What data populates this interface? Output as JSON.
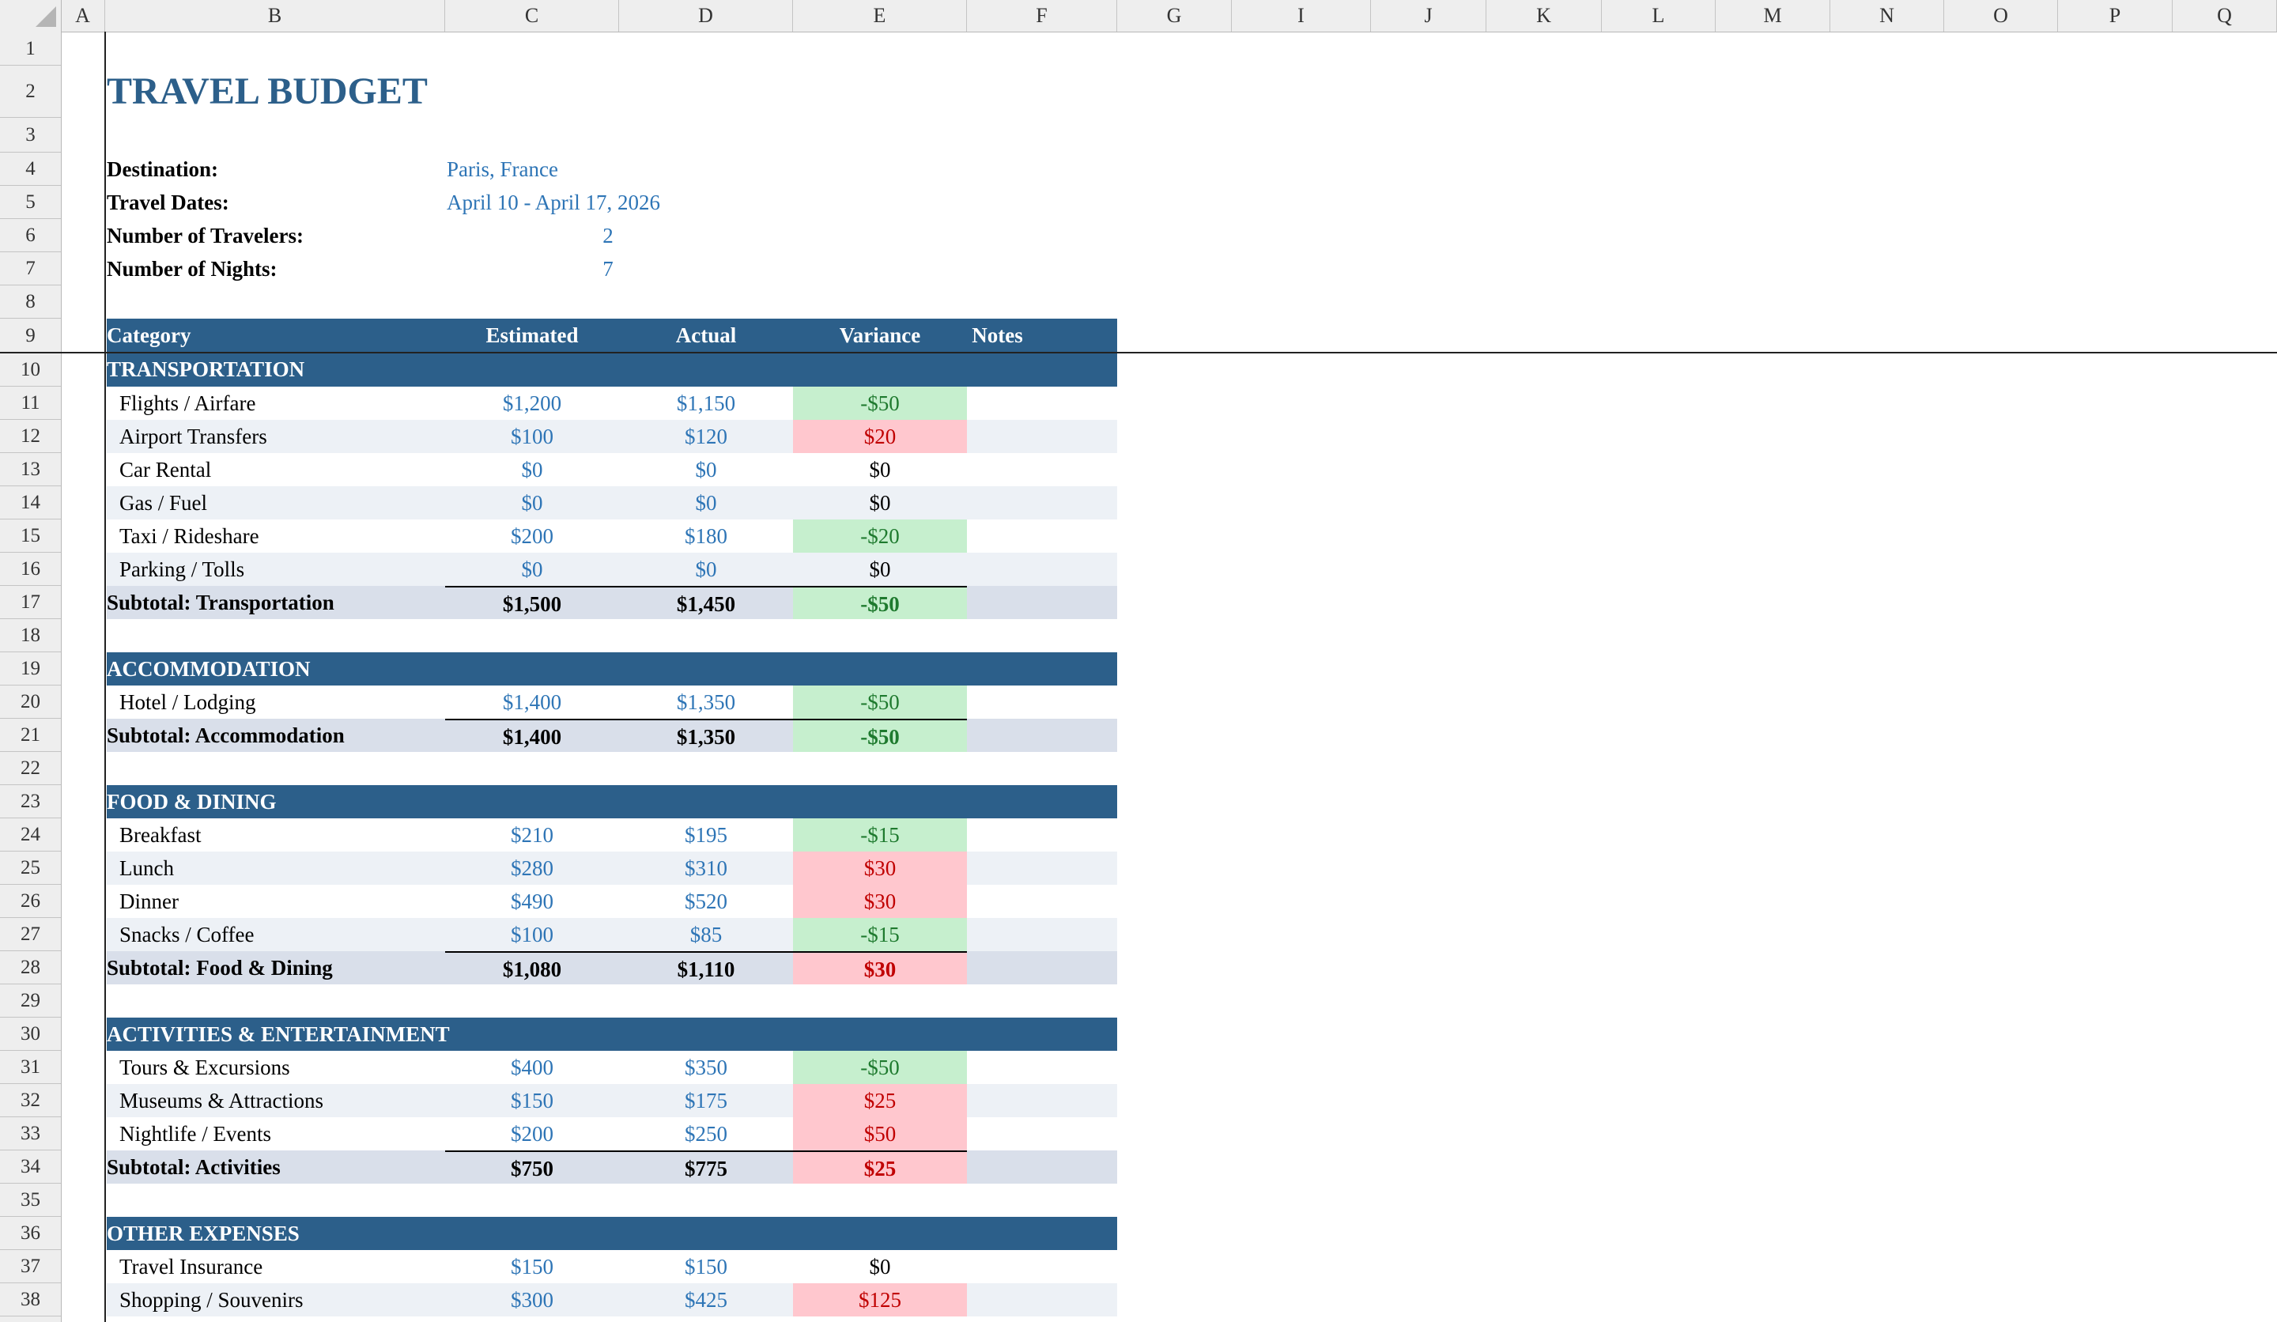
{
  "columns": [
    "A",
    "B",
    "C",
    "D",
    "E",
    "F",
    "G",
    "I",
    "J",
    "K",
    "L",
    "M",
    "N",
    "O",
    "P",
    "Q"
  ],
  "rows": [
    "1",
    "2",
    "3",
    "4",
    "5",
    "6",
    "7",
    "8",
    "9",
    "10",
    "11",
    "12",
    "13",
    "14",
    "15",
    "16",
    "17",
    "18",
    "19",
    "20",
    "21",
    "22",
    "23",
    "24",
    "25",
    "26",
    "27",
    "28",
    "29",
    "30",
    "31",
    "32",
    "33",
    "34",
    "35",
    "36",
    "37",
    "38"
  ],
  "title": "TRAVEL BUDGET",
  "info": {
    "destination_label": "Destination:",
    "destination": "Paris, France",
    "dates_label": "Travel Dates:",
    "dates": "April 10 - April 17, 2026",
    "travelers_label": "Number of Travelers:",
    "travelers": "2",
    "nights_label": "Number of Nights:",
    "nights": "7"
  },
  "table_header": {
    "category": "Category",
    "estimated": "Estimated",
    "actual": "Actual",
    "variance": "Variance",
    "notes": "Notes"
  },
  "sections": [
    {
      "name": "TRANSPORTATION",
      "items": [
        {
          "label": "Flights / Airfare",
          "est": "$1,200",
          "act": "$1,150",
          "var": "-$50",
          "status": "neg"
        },
        {
          "label": "Airport Transfers",
          "est": "$100",
          "act": "$120",
          "var": "$20",
          "status": "pos"
        },
        {
          "label": "Car Rental",
          "est": "$0",
          "act": "$0",
          "var": "$0",
          "status": "zero"
        },
        {
          "label": "Gas / Fuel",
          "est": "$0",
          "act": "$0",
          "var": "$0",
          "status": "zero"
        },
        {
          "label": "Taxi / Rideshare",
          "est": "$200",
          "act": "$180",
          "var": "-$20",
          "status": "neg"
        },
        {
          "label": "Parking / Tolls",
          "est": "$0",
          "act": "$0",
          "var": "$0",
          "status": "zero"
        }
      ],
      "subtotal": {
        "label": "Subtotal: Transportation",
        "est": "$1,500",
        "act": "$1,450",
        "var": "-$50",
        "status": "neg"
      }
    },
    {
      "name": "ACCOMMODATION",
      "items": [
        {
          "label": "Hotel / Lodging",
          "est": "$1,400",
          "act": "$1,350",
          "var": "-$50",
          "status": "neg"
        }
      ],
      "subtotal": {
        "label": "Subtotal: Accommodation",
        "est": "$1,400",
        "act": "$1,350",
        "var": "-$50",
        "status": "neg"
      }
    },
    {
      "name": "FOOD & DINING",
      "items": [
        {
          "label": "Breakfast",
          "est": "$210",
          "act": "$195",
          "var": "-$15",
          "status": "neg"
        },
        {
          "label": "Lunch",
          "est": "$280",
          "act": "$310",
          "var": "$30",
          "status": "pos"
        },
        {
          "label": "Dinner",
          "est": "$490",
          "act": "$520",
          "var": "$30",
          "status": "pos"
        },
        {
          "label": "Snacks / Coffee",
          "est": "$100",
          "act": "$85",
          "var": "-$15",
          "status": "neg"
        }
      ],
      "subtotal": {
        "label": "Subtotal: Food & Dining",
        "est": "$1,080",
        "act": "$1,110",
        "var": "$30",
        "status": "pos"
      }
    },
    {
      "name": "ACTIVITIES & ENTERTAINMENT",
      "items": [
        {
          "label": "Tours & Excursions",
          "est": "$400",
          "act": "$350",
          "var": "-$50",
          "status": "neg"
        },
        {
          "label": "Museums & Attractions",
          "est": "$150",
          "act": "$175",
          "var": "$25",
          "status": "pos"
        },
        {
          "label": "Nightlife / Events",
          "est": "$200",
          "act": "$250",
          "var": "$50",
          "status": "pos"
        }
      ],
      "subtotal": {
        "label": "Subtotal: Activities",
        "est": "$750",
        "act": "$775",
        "var": "$25",
        "status": "pos"
      }
    },
    {
      "name": "OTHER EXPENSES",
      "items": [
        {
          "label": "Travel Insurance",
          "est": "$150",
          "act": "$150",
          "var": "$0",
          "status": "zero"
        },
        {
          "label": "Shopping / Souvenirs",
          "est": "$300",
          "act": "$425",
          "var": "$125",
          "status": "pos"
        }
      ]
    }
  ],
  "colors": {
    "header_bg": "#2c5f8a",
    "band_bg": "#edf1f6",
    "subtotal_bg": "#d9dfea",
    "neg_bg": "#c6efce",
    "neg_fg": "#1e7a2e",
    "pos_bg": "#ffc7ce",
    "pos_fg": "#c00000",
    "input_fg": "#2e75b6"
  }
}
